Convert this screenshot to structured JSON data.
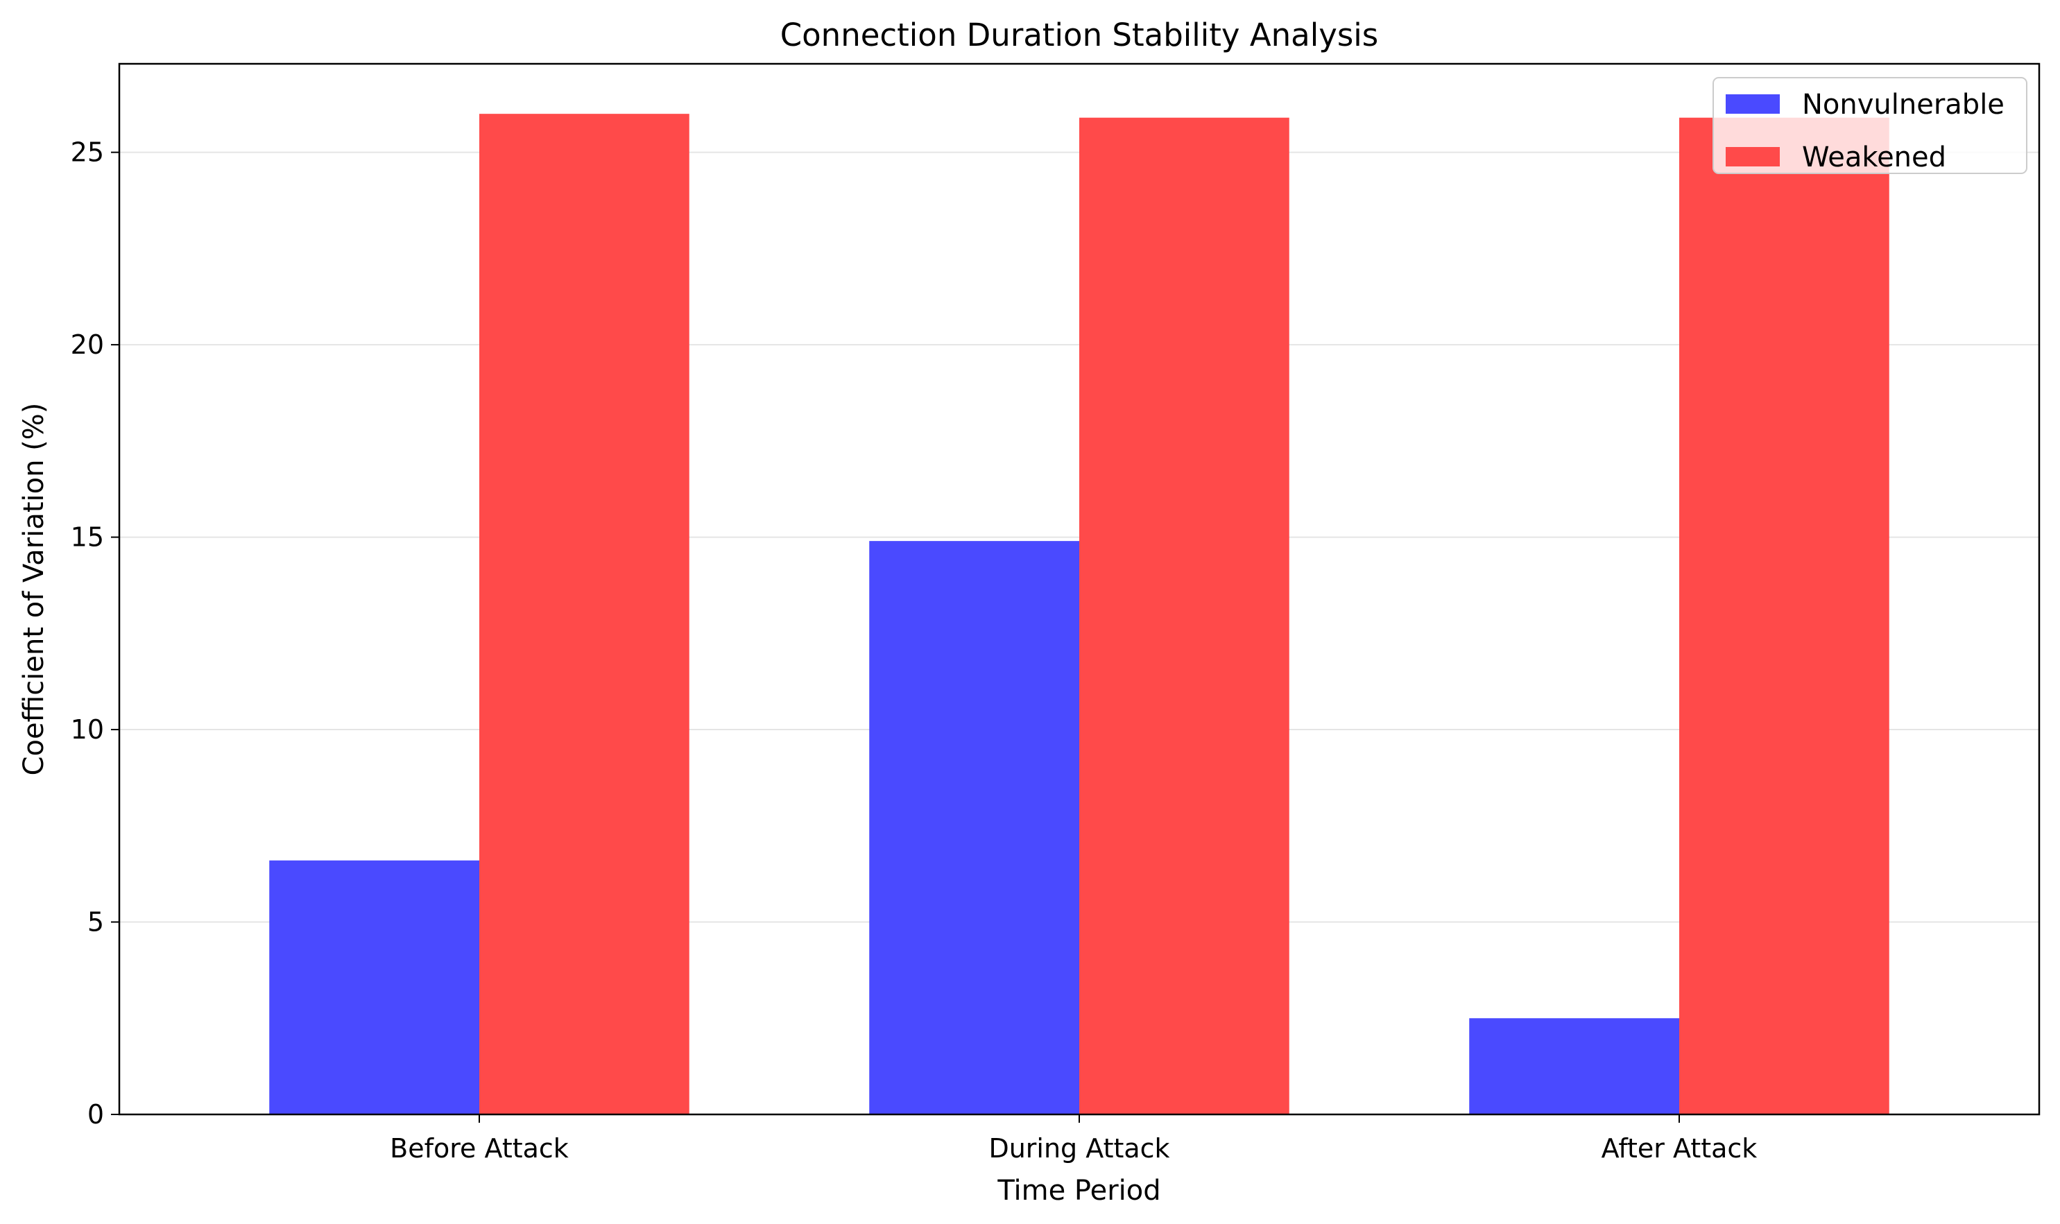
{
  "chart_data": {
    "type": "bar",
    "title": "Connection Duration Stability Analysis",
    "xlabel": "Time Period",
    "ylabel": "Coefficient of Variation (%)",
    "categories": [
      "Before Attack",
      "During Attack",
      "After Attack"
    ],
    "series": [
      {
        "name": "Nonvulnerable",
        "color": "#4a4aff",
        "values": [
          6.6,
          14.9,
          2.5
        ]
      },
      {
        "name": "Weakened",
        "color": "#ff4a4a",
        "values": [
          26.0,
          25.9,
          25.9
        ]
      }
    ],
    "ylim": [
      0,
      27.3
    ],
    "yticks": [
      0,
      5,
      10,
      15,
      20,
      25
    ],
    "grid": "y",
    "legend": "top-right"
  }
}
